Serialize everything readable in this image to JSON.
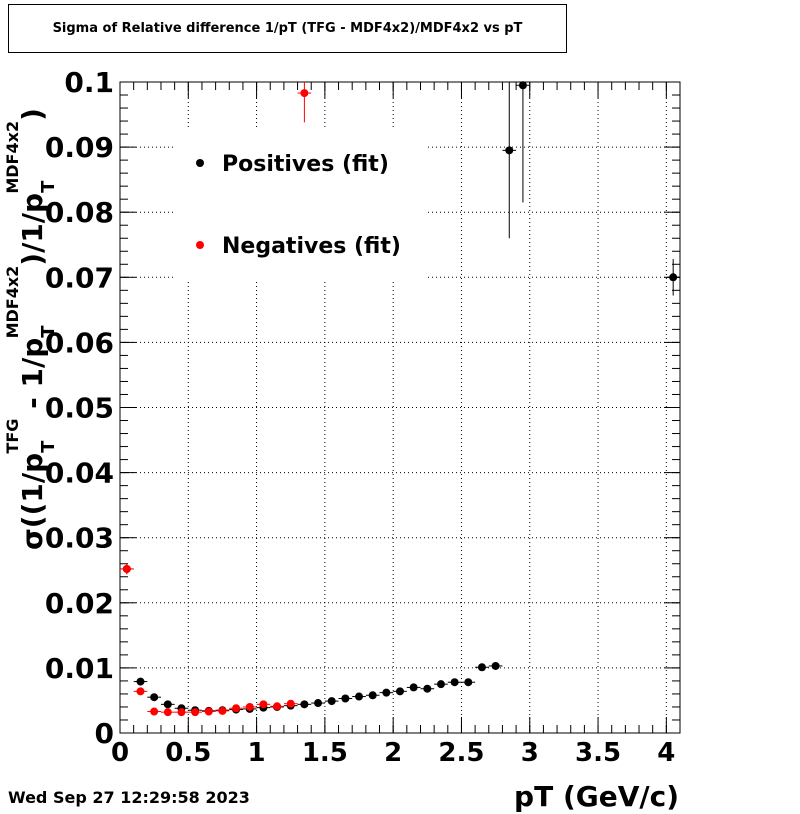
{
  "header": {
    "title": "Sigma of Relative difference 1/pT (TFG - MDF4x2)/MDF4x2 vs pT"
  },
  "footer": {
    "timestamp": "Wed Sep 27 12:29:58 2023"
  },
  "chart_data": {
    "type": "scatter",
    "title": "Sigma of Relative difference 1/pT (TFG - MDF4x2)/MDF4x2 vs pT",
    "xlabel": "pT (GeV/c)",
    "ylabel": "σ((1/p_T^TFG - 1/p_T^MDF4x2)/1/p_T^MDF4x2)",
    "xlim": [
      0,
      4.1
    ],
    "ylim": [
      0,
      0.1
    ],
    "xticks": [
      "0",
      "0.5",
      "1",
      "1.5",
      "2",
      "2.5",
      "3",
      "3.5",
      "4"
    ],
    "yticks": [
      "0",
      "0.01",
      "0.02",
      "0.03",
      "0.04",
      "0.05",
      "0.06",
      "0.07",
      "0.08",
      "0.09",
      "0.1"
    ],
    "grid": true,
    "legend": "top-left",
    "series": [
      {
        "name": "Positives (fit)",
        "color": "#000000",
        "points": [
          {
            "x": 0.05,
            "y": 0.0252,
            "ey": 0.0008
          },
          {
            "x": 0.15,
            "y": 0.0079,
            "ey": 0.0004
          },
          {
            "x": 0.25,
            "y": 0.0055,
            "ey": 0.0003
          },
          {
            "x": 0.35,
            "y": 0.0044,
            "ey": 0.0002
          },
          {
            "x": 0.45,
            "y": 0.0038,
            "ey": 0.0002
          },
          {
            "x": 0.55,
            "y": 0.0035,
            "ey": 0.0002
          },
          {
            "x": 0.65,
            "y": 0.0034,
            "ey": 0.0002
          },
          {
            "x": 0.75,
            "y": 0.0035,
            "ey": 0.0002
          },
          {
            "x": 0.85,
            "y": 0.0036,
            "ey": 0.0002
          },
          {
            "x": 0.95,
            "y": 0.0037,
            "ey": 0.0002
          },
          {
            "x": 1.05,
            "y": 0.0039,
            "ey": 0.0002
          },
          {
            "x": 1.15,
            "y": 0.004,
            "ey": 0.0002
          },
          {
            "x": 1.25,
            "y": 0.0042,
            "ey": 0.0002
          },
          {
            "x": 1.35,
            "y": 0.0044,
            "ey": 0.0002
          },
          {
            "x": 1.45,
            "y": 0.0046,
            "ey": 0.0002
          },
          {
            "x": 1.55,
            "y": 0.0049,
            "ey": 0.0002
          },
          {
            "x": 1.65,
            "y": 0.0053,
            "ey": 0.0003
          },
          {
            "x": 1.75,
            "y": 0.0056,
            "ey": 0.0003
          },
          {
            "x": 1.85,
            "y": 0.0058,
            "ey": 0.0003
          },
          {
            "x": 1.95,
            "y": 0.0062,
            "ey": 0.0003
          },
          {
            "x": 2.05,
            "y": 0.0064,
            "ey": 0.0003
          },
          {
            "x": 2.15,
            "y": 0.007,
            "ey": 0.0003
          },
          {
            "x": 2.25,
            "y": 0.0068,
            "ey": 0.0003
          },
          {
            "x": 2.35,
            "y": 0.0075,
            "ey": 0.0004
          },
          {
            "x": 2.45,
            "y": 0.0078,
            "ey": 0.0004
          },
          {
            "x": 2.55,
            "y": 0.0078,
            "ey": 0.0004
          },
          {
            "x": 2.65,
            "y": 0.0101,
            "ey": 0.0005
          },
          {
            "x": 2.75,
            "y": 0.0103,
            "ey": 0.0006
          },
          {
            "x": 2.85,
            "y": 0.0895,
            "ey": 0.0135
          },
          {
            "x": 2.95,
            "y": 0.0995,
            "ey": 0.018
          },
          {
            "x": 4.05,
            "y": 0.07,
            "ey": 0.0028
          }
        ]
      },
      {
        "name": "Negatives (fit)",
        "color": "#ff0000",
        "points": [
          {
            "x": 0.05,
            "y": 0.0252,
            "ey": 0.0008
          },
          {
            "x": 0.15,
            "y": 0.0064,
            "ey": 0.0004
          },
          {
            "x": 0.25,
            "y": 0.0033,
            "ey": 0.0002
          },
          {
            "x": 0.35,
            "y": 0.0032,
            "ey": 0.0002
          },
          {
            "x": 0.45,
            "y": 0.0032,
            "ey": 0.0002
          },
          {
            "x": 0.55,
            "y": 0.0032,
            "ey": 0.0002
          },
          {
            "x": 0.65,
            "y": 0.0033,
            "ey": 0.0002
          },
          {
            "x": 0.75,
            "y": 0.0034,
            "ey": 0.0002
          },
          {
            "x": 0.85,
            "y": 0.0038,
            "ey": 0.0002
          },
          {
            "x": 0.95,
            "y": 0.004,
            "ey": 0.0002
          },
          {
            "x": 1.05,
            "y": 0.0044,
            "ey": 0.0002
          },
          {
            "x": 1.15,
            "y": 0.0041,
            "ey": 0.0002
          },
          {
            "x": 1.25,
            "y": 0.0045,
            "ey": 0.0003
          },
          {
            "x": 1.35,
            "y": 0.0983,
            "ey": 0.0045
          }
        ]
      }
    ]
  }
}
